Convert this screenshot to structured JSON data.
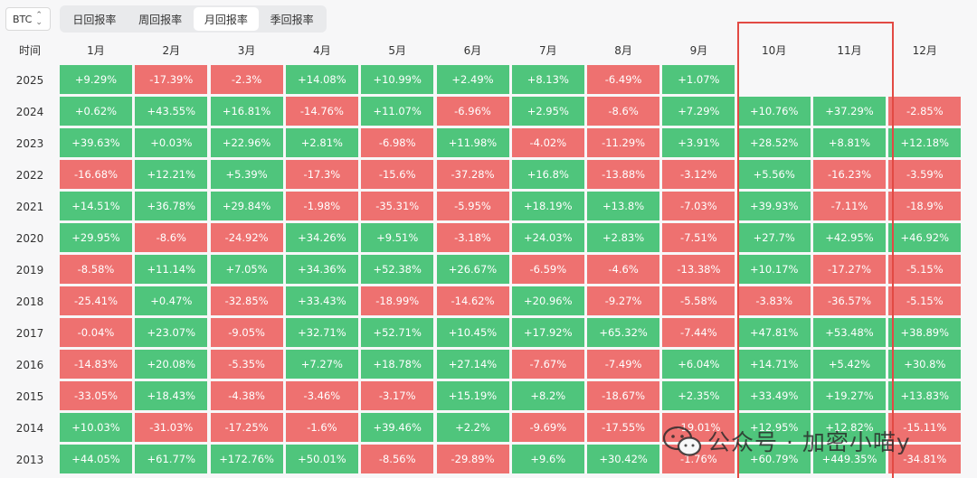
{
  "asset_select": {
    "value": "BTC"
  },
  "tabs": [
    {
      "label": "日回报率",
      "active": false
    },
    {
      "label": "周回报率",
      "active": false
    },
    {
      "label": "月回报率",
      "active": true
    },
    {
      "label": "季回报率",
      "active": false
    }
  ],
  "table": {
    "corner_label": "时间",
    "months": [
      "1月",
      "2月",
      "3月",
      "4月",
      "5月",
      "6月",
      "7月",
      "8月",
      "9月",
      "10月",
      "11月",
      "12月"
    ],
    "rows": [
      {
        "year": "2025",
        "values": [
          "+9.29%",
          "-17.39%",
          "-2.3%",
          "+14.08%",
          "+10.99%",
          "+2.49%",
          "+8.13%",
          "-6.49%",
          "+1.07%",
          "",
          "",
          ""
        ]
      },
      {
        "year": "2024",
        "values": [
          "+0.62%",
          "+43.55%",
          "+16.81%",
          "-14.76%",
          "+11.07%",
          "-6.96%",
          "+2.95%",
          "-8.6%",
          "+7.29%",
          "+10.76%",
          "+37.29%",
          "-2.85%"
        ]
      },
      {
        "year": "2023",
        "values": [
          "+39.63%",
          "+0.03%",
          "+22.96%",
          "+2.81%",
          "-6.98%",
          "+11.98%",
          "-4.02%",
          "-11.29%",
          "+3.91%",
          "+28.52%",
          "+8.81%",
          "+12.18%"
        ]
      },
      {
        "year": "2022",
        "values": [
          "-16.68%",
          "+12.21%",
          "+5.39%",
          "-17.3%",
          "-15.6%",
          "-37.28%",
          "+16.8%",
          "-13.88%",
          "-3.12%",
          "+5.56%",
          "-16.23%",
          "-3.59%"
        ]
      },
      {
        "year": "2021",
        "values": [
          "+14.51%",
          "+36.78%",
          "+29.84%",
          "-1.98%",
          "-35.31%",
          "-5.95%",
          "+18.19%",
          "+13.8%",
          "-7.03%",
          "+39.93%",
          "-7.11%",
          "-18.9%"
        ]
      },
      {
        "year": "2020",
        "values": [
          "+29.95%",
          "-8.6%",
          "-24.92%",
          "+34.26%",
          "+9.51%",
          "-3.18%",
          "+24.03%",
          "+2.83%",
          "-7.51%",
          "+27.7%",
          "+42.95%",
          "+46.92%"
        ]
      },
      {
        "year": "2019",
        "values": [
          "-8.58%",
          "+11.14%",
          "+7.05%",
          "+34.36%",
          "+52.38%",
          "+26.67%",
          "-6.59%",
          "-4.6%",
          "-13.38%",
          "+10.17%",
          "-17.27%",
          "-5.15%"
        ]
      },
      {
        "year": "2018",
        "values": [
          "-25.41%",
          "+0.47%",
          "-32.85%",
          "+33.43%",
          "-18.99%",
          "-14.62%",
          "+20.96%",
          "-9.27%",
          "-5.58%",
          "-3.83%",
          "-36.57%",
          "-5.15%"
        ]
      },
      {
        "year": "2017",
        "values": [
          "-0.04%",
          "+23.07%",
          "-9.05%",
          "+32.71%",
          "+52.71%",
          "+10.45%",
          "+17.92%",
          "+65.32%",
          "-7.44%",
          "+47.81%",
          "+53.48%",
          "+38.89%"
        ]
      },
      {
        "year": "2016",
        "values": [
          "-14.83%",
          "+20.08%",
          "-5.35%",
          "+7.27%",
          "+18.78%",
          "+27.14%",
          "-7.67%",
          "-7.49%",
          "+6.04%",
          "+14.71%",
          "+5.42%",
          "+30.8%"
        ]
      },
      {
        "year": "2015",
        "values": [
          "-33.05%",
          "+18.43%",
          "-4.38%",
          "-3.46%",
          "-3.17%",
          "+15.19%",
          "+8.2%",
          "-18.67%",
          "+2.35%",
          "+33.49%",
          "+19.27%",
          "+13.83%"
        ]
      },
      {
        "year": "2014",
        "values": [
          "+10.03%",
          "-31.03%",
          "-17.25%",
          "-1.6%",
          "+39.46%",
          "+2.2%",
          "-9.69%",
          "-17.55%",
          "-19.01%",
          "+12.95%",
          "+12.82%",
          "-15.11%"
        ]
      },
      {
        "year": "2013",
        "values": [
          "+44.05%",
          "+61.77%",
          "+172.76%",
          "+50.01%",
          "-8.56%",
          "-29.89%",
          "+9.6%",
          "+30.42%",
          "-1.76%",
          "+60.79%",
          "+449.35%",
          "-34.81%"
        ]
      }
    ]
  },
  "colors": {
    "positive": "#4fc57c",
    "negative": "#ee7170",
    "highlight": "#e24a44"
  },
  "watermark": {
    "text": "公众号 · 加密小喵y"
  }
}
